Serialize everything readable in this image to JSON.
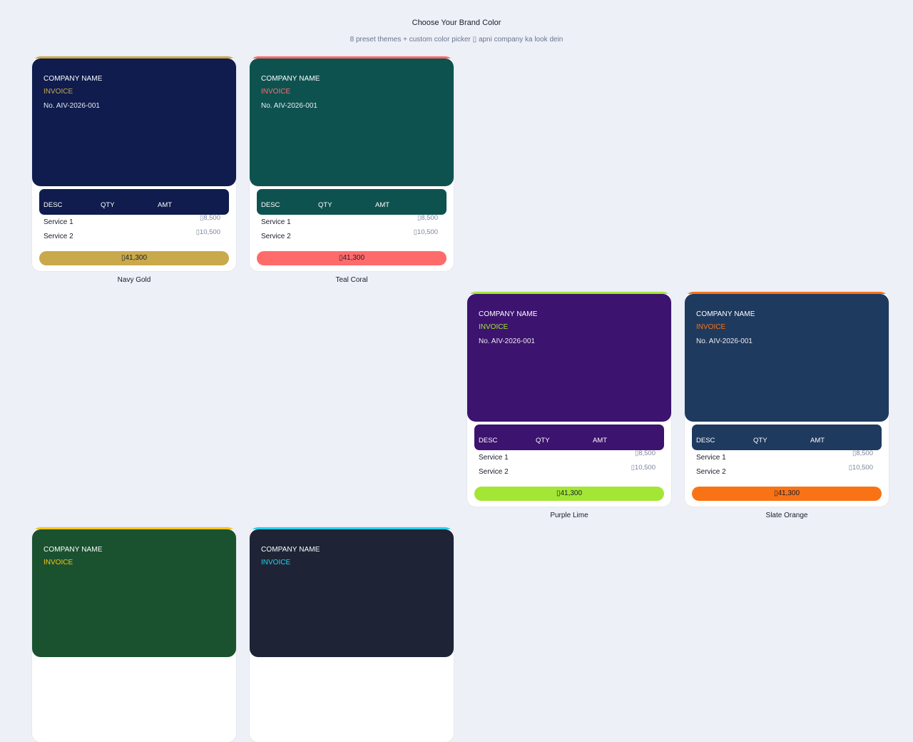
{
  "header": {
    "title": "Choose Your Brand Color",
    "subtitle": "8 preset themes + custom color picker ▯ apni company ka look dein"
  },
  "preview": {
    "company": "COMPANY NAME",
    "invoice": "INVOICE",
    "invoice_no": "No. AIV-2026-001",
    "col_desc": "DESC",
    "col_qty": "QTY",
    "col_amt": "AMT",
    "row1_label": "Service 1",
    "row1_amt": "▯8,500",
    "row2_label": "Service 2",
    "row2_amt": "▯10,500",
    "total": "▯41,300"
  },
  "themes": [
    {
      "name": "Navy Gold",
      "primary": "#0f1c4d",
      "accent": "#c9a94b"
    },
    {
      "name": "Teal Coral",
      "primary": "#0e5250",
      "accent": "#ff6b6b"
    },
    {
      "name": "Purple Lime",
      "primary": "#3c136e",
      "accent": "#a3e635"
    },
    {
      "name": "Slate Orange",
      "primary": "#1f3a5f",
      "accent": "#f97316"
    },
    {
      "name": "",
      "primary": "#1a5230",
      "accent": "#f5c518"
    },
    {
      "name": "",
      "primary": "#1e2436",
      "accent": "#22d3ee"
    }
  ]
}
